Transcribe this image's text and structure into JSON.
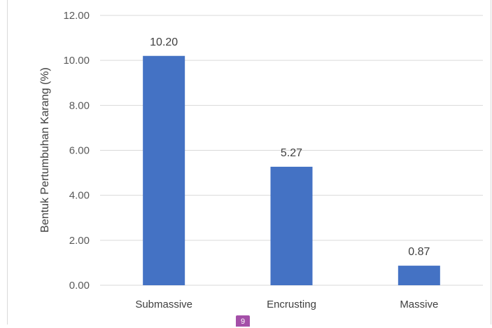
{
  "chart_data": {
    "type": "bar",
    "title": "",
    "xlabel": "",
    "ylabel": "Bentuk Pertumbuhan  Karang (%)",
    "categories": [
      "Submassive",
      "Encrusting",
      "Massive"
    ],
    "values": [
      10.2,
      5.27,
      0.87
    ],
    "data_labels": [
      "10.20",
      "5.27",
      "0.87"
    ],
    "ylim": [
      0,
      12
    ],
    "yticks": [
      "0.00",
      "2.00",
      "4.00",
      "6.00",
      "8.00",
      "10.00",
      "12.00"
    ],
    "grid": true,
    "bar_color": "#4472c4",
    "grid_color": "#d9d9d9"
  },
  "page_badge": "9"
}
